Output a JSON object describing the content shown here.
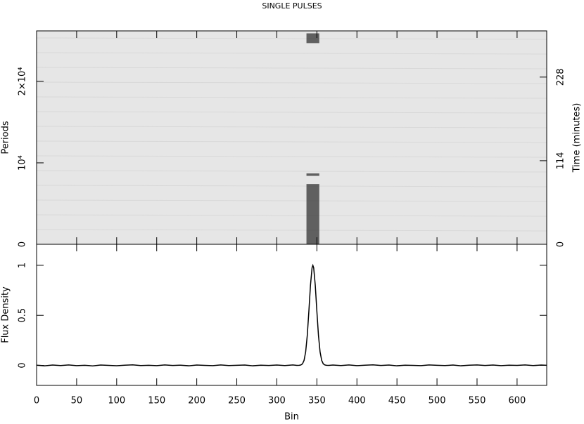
{
  "chart_data": [
    {
      "type": "image",
      "title": "SINGLE PULSES",
      "ylabel": "Periods",
      "y2label": "Time (minutes)",
      "ylim": [
        0,
        26200
      ],
      "yticks": [
        0,
        {
          "value": 10000,
          "label": "10⁴"
        },
        {
          "value": 20000,
          "label": "2×10⁴"
        }
      ],
      "y2lim": [
        0,
        291
      ],
      "y2ticks": [
        0,
        114,
        228
      ],
      "pulse_bins": [
        337,
        353
      ],
      "segments": [
        {
          "start": 0,
          "end": 7400
        },
        {
          "start": 8400,
          "end": 8700
        },
        {
          "start": 24700,
          "end": 25900
        }
      ],
      "color": "#333333",
      "background": "#e6e6e6"
    },
    {
      "type": "line",
      "xlabel": "Bin",
      "ylabel": "Flux Density",
      "xlim": [
        0,
        637
      ],
      "xticks": [
        0,
        50,
        100,
        150,
        200,
        250,
        300,
        350,
        400,
        450,
        500,
        550,
        600
      ],
      "ylim": [
        -0.2,
        1.21
      ],
      "yticks": [
        0,
        0.5,
        1
      ],
      "x": [
        0,
        10,
        20,
        30,
        40,
        50,
        60,
        70,
        80,
        90,
        100,
        110,
        120,
        130,
        140,
        150,
        160,
        170,
        180,
        190,
        200,
        210,
        220,
        230,
        240,
        250,
        260,
        270,
        280,
        290,
        300,
        310,
        320,
        325,
        328,
        330,
        332,
        334,
        336,
        338,
        340,
        342,
        344,
        345,
        346,
        348,
        350,
        352,
        354,
        356,
        358,
        360,
        362,
        365,
        370,
        380,
        390,
        400,
        410,
        420,
        430,
        440,
        450,
        460,
        470,
        480,
        490,
        500,
        510,
        520,
        530,
        540,
        550,
        560,
        570,
        580,
        590,
        600,
        610,
        620,
        630,
        637
      ],
      "series": [
        {
          "color": "#000000",
          "values": [
            0.002,
            -0.004,
            0.003,
            -0.002,
            0.004,
            -0.003,
            0.001,
            -0.005,
            0.003,
            0.0,
            -0.004,
            0.002,
            0.005,
            -0.002,
            0.001,
            -0.003,
            0.004,
            -0.001,
            0.002,
            -0.004,
            0.003,
            0.0,
            -0.003,
            0.004,
            -0.002,
            0.001,
            0.003,
            -0.004,
            0.002,
            -0.001,
            0.003,
            -0.002,
            0.004,
            0.0,
            0.001,
            0.004,
            0.015,
            0.05,
            0.135,
            0.298,
            0.54,
            0.8,
            0.976,
            1.0,
            0.976,
            0.8,
            0.54,
            0.298,
            0.135,
            0.05,
            0.015,
            0.004,
            0.001,
            0.0,
            0.003,
            -0.002,
            0.004,
            -0.003,
            0.002,
            0.005,
            -0.001,
            0.003,
            -0.004,
            0.002,
            0.0,
            -0.003,
            0.004,
            0.001,
            -0.002,
            0.003,
            -0.004,
            0.002,
            0.004,
            -0.001,
            0.003,
            -0.003,
            0.002,
            0.0,
            0.004,
            -0.002,
            0.003,
            0.001
          ]
        }
      ]
    }
  ]
}
